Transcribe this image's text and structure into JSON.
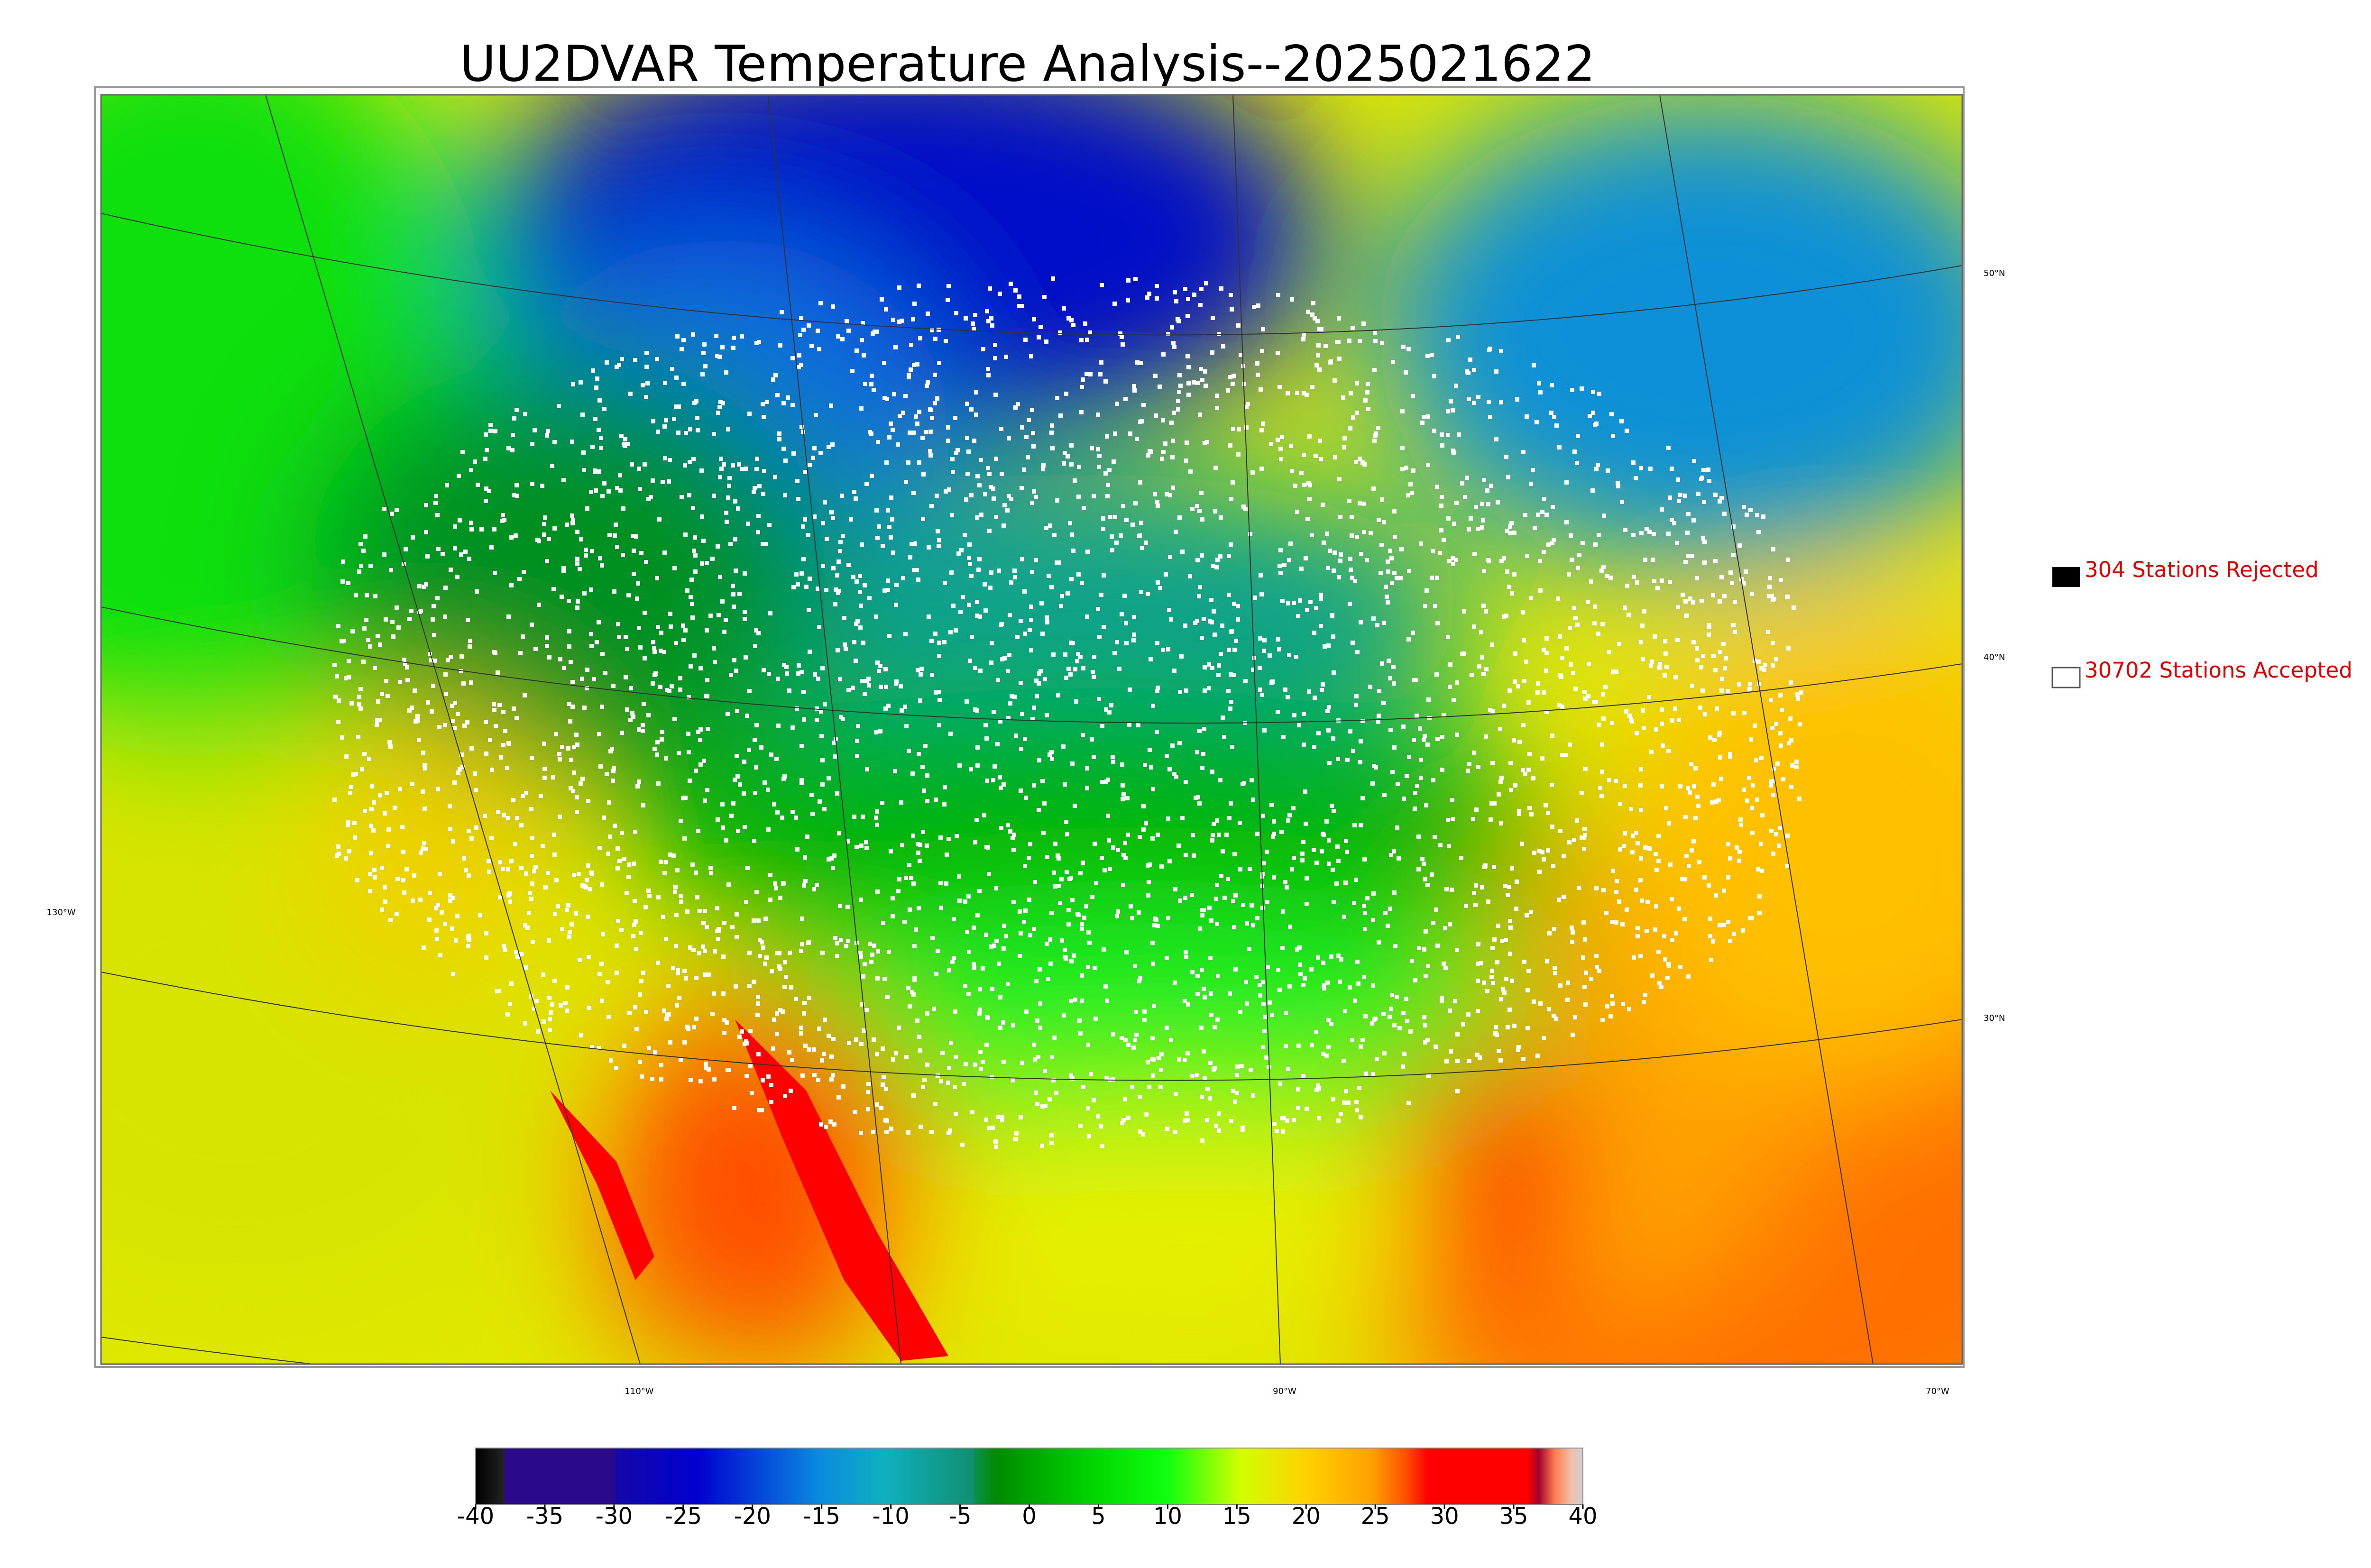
{
  "title": "UU2DVAR Temperature Analysis--2025021622",
  "map": {
    "lat_labels": [
      "50°N",
      "40°N",
      "30°N"
    ],
    "lon_labels": [
      "130°W",
      "110°W",
      "90°W",
      "70°W"
    ]
  },
  "legend": {
    "rejected": "304 Stations Rejected",
    "accepted": "30702 Stations Accepted"
  },
  "colorbar": {
    "lim": [
      -40,
      40
    ],
    "ticks": [
      -40,
      -35,
      -30,
      -25,
      -20,
      -15,
      -10,
      -5,
      0,
      5,
      10,
      15,
      20,
      25,
      30,
      35,
      40
    ]
  }
}
